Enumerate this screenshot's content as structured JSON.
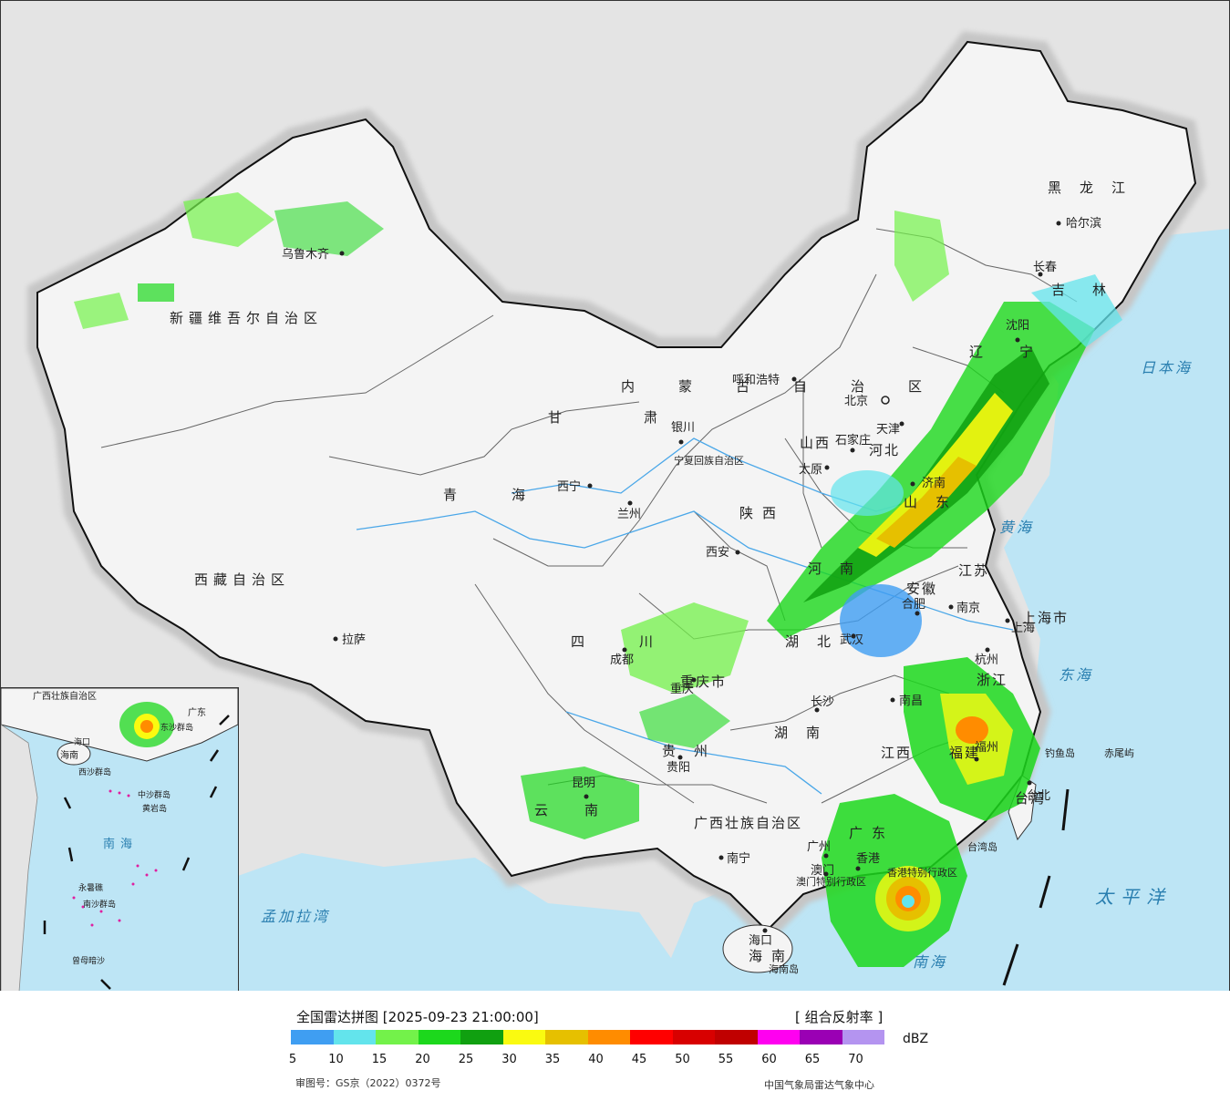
{
  "legend": {
    "title": "全国雷达拼图 [2025-09-23 21:00:00]",
    "product": "[ 组合反射率 ]",
    "unit": "dBZ",
    "scale_colors": [
      "#3f9ef2",
      "#63e4ec",
      "#73f24a",
      "#1cd81c",
      "#10a010",
      "#fafa10",
      "#e6c000",
      "#ff8c00",
      "#ff0000",
      "#d80000",
      "#c00000",
      "#ff00f0",
      "#9a00b4",
      "#b494f0"
    ],
    "ticks": [
      "5",
      "10",
      "15",
      "20",
      "25",
      "30",
      "35",
      "40",
      "45",
      "50",
      "55",
      "60",
      "65",
      "70"
    ],
    "approval_number": "审图号：GS京（2022）0372号",
    "source": "中国气象局雷达气象中心"
  },
  "provinces": [
    "新疆维吾尔自治区",
    "西藏自治区",
    "青海",
    "甘肃",
    "内蒙古自治区",
    "黑龙江",
    "吉林",
    "辽宁",
    "河北",
    "山西",
    "陕西",
    "宁夏回族自治区",
    "四川",
    "云南",
    "贵州",
    "重庆市",
    "湖北",
    "湖南",
    "河南",
    "山东",
    "安徽",
    "江苏",
    "浙江",
    "江西",
    "福建",
    "广东",
    "广西壮族自治区",
    "海南",
    "台湾",
    "上海市",
    "香港特别行政区",
    "澳门特别行政区"
  ],
  "cities": [
    "乌鲁木齐",
    "拉萨",
    "西宁",
    "兰州",
    "银川",
    "呼和浩特",
    "北京",
    "天津",
    "石家庄",
    "太原",
    "西安",
    "成都",
    "重庆",
    "贵阳",
    "昆明",
    "南宁",
    "广州",
    "香港",
    "澳门",
    "海口",
    "海南岛",
    "长沙",
    "武汉",
    "合肥",
    "南京",
    "上海",
    "杭州",
    "南昌",
    "福州",
    "台北",
    "台湾岛",
    "沈阳",
    "长春",
    "哈尔滨",
    "钓鱼岛",
    "赤尾屿",
    "济南"
  ],
  "seas": [
    "日本海",
    "黄海",
    "东海",
    "太平洋",
    "南海",
    "孟加拉湾"
  ],
  "inset": {
    "labels": [
      "广西壮族自治区",
      "广东",
      "海南",
      "海口",
      "南海",
      "东沙群岛",
      "西沙群岛",
      "中沙群岛",
      "黄岩岛",
      "南沙群岛",
      "永暑礁",
      "曾母暗沙"
    ]
  }
}
